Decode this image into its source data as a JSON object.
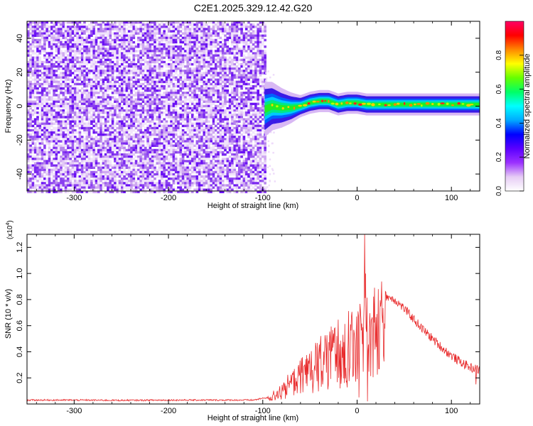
{
  "title": "C2E1.2025.329.12.42.G20",
  "chart_data": [
    {
      "type": "heatmap",
      "name": "spectrogram",
      "xlabel": "Height of straight line (km)",
      "ylabel": "Frequency (Hz)",
      "xlim": [
        -350,
        130
      ],
      "ylim": [
        -50,
        50
      ],
      "xticks": [
        -300,
        -200,
        -100,
        0,
        100
      ],
      "yticks": [
        -40,
        -20,
        0,
        20,
        40
      ],
      "colorbar": {
        "label": "Normalized spectral amplitude",
        "range": [
          0,
          1
        ],
        "ticks": [
          "0.0",
          "0.2",
          "0.4",
          "0.6",
          "0.8"
        ],
        "tick_values": [
          0,
          0.2,
          0.4,
          0.6,
          0.8
        ],
        "colors": [
          "#ffffff",
          "#e6ccf5",
          "#9b30ff",
          "#5a00ff",
          "#0000ff",
          "#00aaff",
          "#00ffff",
          "#00ff66",
          "#66ff00",
          "#ffff00",
          "#ff8800",
          "#ff0000",
          "#ff0066"
        ]
      },
      "noise_region_x": [
        -350,
        -98
      ],
      "ridge": {
        "x": [
          -98,
          -90,
          -80,
          -70,
          -60,
          -50,
          -40,
          -30,
          -20,
          -10,
          0,
          10,
          20,
          40,
          60,
          80,
          100,
          130
        ],
        "frequency": [
          -2,
          0,
          -1,
          -1,
          0,
          2,
          3,
          3,
          1,
          2,
          2,
          1,
          1,
          1,
          1,
          1,
          1,
          1
        ]
      }
    },
    {
      "type": "line",
      "name": "snr",
      "xlabel": "Height of straight line (km)",
      "ylabel": "SNR (10 * v/v)",
      "multiplier": "(x10",
      "multiplier_exp": "4",
      "xlim": [
        -350,
        130
      ],
      "ylim": [
        0,
        1.3
      ],
      "xticks": [
        -300,
        -200,
        -100,
        0,
        100
      ],
      "yticks": [
        "0.2",
        "0.4",
        "0.6",
        "0.8",
        "1.0",
        "1.2"
      ],
      "ytick_values": [
        0.2,
        0.4,
        0.6,
        0.8,
        1.0,
        1.2
      ],
      "color": "#e8292a",
      "envelope": {
        "x": [
          -350,
          -300,
          -250,
          -200,
          -150,
          -110,
          -95,
          -85,
          -70,
          -60,
          -50,
          -40,
          -30,
          -20,
          -10,
          0,
          10,
          20,
          30,
          40,
          50,
          60,
          70,
          80,
          90,
          100,
          110,
          120,
          130
        ],
        "y": [
          0.03,
          0.03,
          0.028,
          0.03,
          0.03,
          0.03,
          0.05,
          0.12,
          0.22,
          0.3,
          0.38,
          0.45,
          0.52,
          0.58,
          0.64,
          0.7,
          0.77,
          0.82,
          0.83,
          0.8,
          0.73,
          0.65,
          0.57,
          0.5,
          0.43,
          0.37,
          0.32,
          0.28,
          0.26
        ]
      },
      "spikes": [
        {
          "x": 8,
          "y": 1.3
        },
        {
          "x": 11,
          "y": 0.02
        },
        {
          "x": 9,
          "y": 1.0
        },
        {
          "x": 2,
          "y": 0.05
        },
        {
          "x": 126,
          "y": 0.15
        }
      ]
    }
  ]
}
